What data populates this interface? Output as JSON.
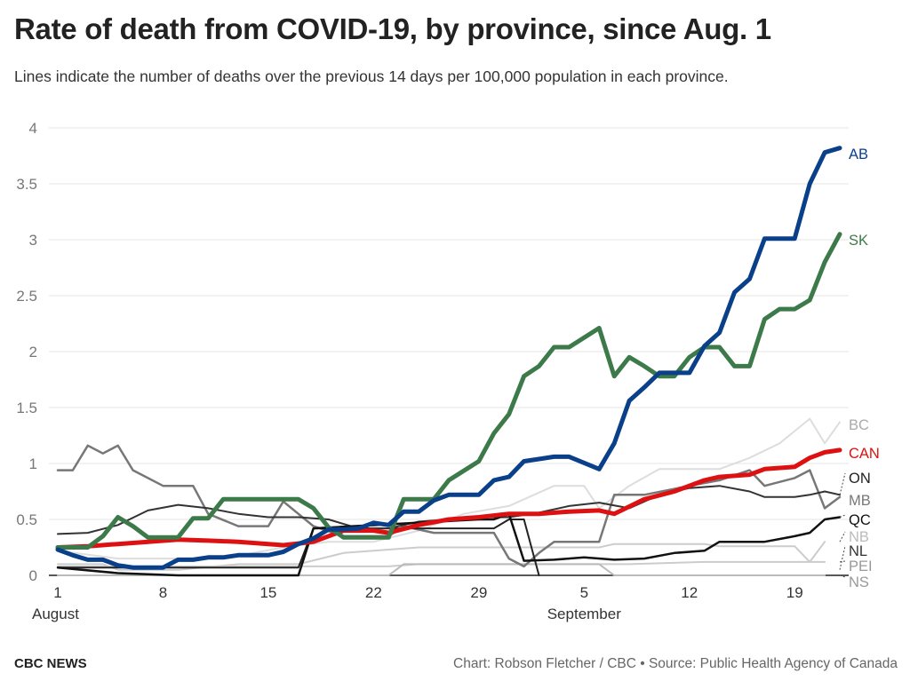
{
  "title": "Rate of death from COVID-19, by province, since Aug. 1",
  "subtitle": "Lines indicate the number of deaths over the previous 14 days per 100,000 population in each province.",
  "footer": {
    "brand": "CBC NEWS",
    "credit": "Chart: Robson Fletcher / CBC • Source: Public Health Agency of Canada"
  },
  "chart_data": {
    "type": "line",
    "x_start": "Aug 1",
    "x_tick_labels": [
      {
        "day": 1,
        "label": "1",
        "month": "August"
      },
      {
        "day": 8,
        "label": "8"
      },
      {
        "day": 15,
        "label": "15"
      },
      {
        "day": 22,
        "label": "22"
      },
      {
        "day": 29,
        "label": "29"
      },
      {
        "day": 36,
        "label": "5",
        "month": "September"
      },
      {
        "day": 43,
        "label": "12"
      },
      {
        "day": 50,
        "label": "19"
      }
    ],
    "ylim": [
      0,
      4
    ],
    "y_ticks": [
      0,
      0.5,
      1,
      1.5,
      2,
      2.5,
      3,
      3.5,
      4
    ],
    "y_tick_labels": [
      "0",
      "0.5",
      "1",
      "1.5",
      "2",
      "2.5",
      "3",
      "3.5",
      "4"
    ],
    "grid": true,
    "series": [
      {
        "name": "PEI",
        "color": "#cccccc",
        "width": 2,
        "points": [
          [
            1,
            0.08
          ],
          [
            23,
            0.08
          ],
          [
            25,
            0.1
          ],
          [
            28,
            0.1
          ],
          [
            30,
            0.1
          ],
          [
            34,
            0.1
          ],
          [
            37,
            0.1
          ],
          [
            39,
            0.1
          ],
          [
            44,
            0.12
          ],
          [
            50,
            0.12
          ],
          [
            52,
            0.12
          ]
        ]
      },
      {
        "name": "NS",
        "color": "#bbbbbb",
        "width": 2,
        "points": [
          [
            1,
            0
          ],
          [
            23,
            0
          ],
          [
            24,
            0.1
          ],
          [
            31,
            0.1
          ],
          [
            34,
            0.1
          ],
          [
            37,
            0.1
          ],
          [
            38,
            0
          ],
          [
            52,
            0
          ]
        ]
      },
      {
        "name": "NB",
        "color": "#cccccc",
        "width": 2,
        "points": [
          [
            1,
            0.1
          ],
          [
            4,
            0.1
          ],
          [
            5,
            0.05
          ],
          [
            9,
            0.05
          ],
          [
            13,
            0.1
          ],
          [
            16,
            0.1
          ],
          [
            17,
            0.1
          ],
          [
            20,
            0.2
          ],
          [
            25,
            0.25
          ],
          [
            30,
            0.25
          ],
          [
            32,
            0.25
          ],
          [
            37,
            0.25
          ],
          [
            38,
            0.28
          ],
          [
            44,
            0.28
          ],
          [
            45,
            0.26
          ],
          [
            50,
            0.26
          ],
          [
            51,
            0.12
          ],
          [
            52,
            0.3
          ]
        ]
      },
      {
        "name": "BC",
        "color": "#dddddd",
        "width": 2,
        "points": [
          [
            1,
            0.22
          ],
          [
            5,
            0.15
          ],
          [
            8,
            0.15
          ],
          [
            12,
            0.15
          ],
          [
            16,
            0.25
          ],
          [
            19,
            0.3
          ],
          [
            22,
            0.3
          ],
          [
            25,
            0.4
          ],
          [
            28,
            0.55
          ],
          [
            31,
            0.62
          ],
          [
            34,
            0.8
          ],
          [
            36,
            0.8
          ],
          [
            37,
            0.6
          ],
          [
            39,
            0.8
          ],
          [
            41,
            0.95
          ],
          [
            43,
            0.95
          ],
          [
            45,
            0.95
          ],
          [
            47,
            1.05
          ],
          [
            49,
            1.18
          ],
          [
            51,
            1.4
          ],
          [
            52,
            1.18
          ],
          [
            53,
            1.37
          ]
        ]
      },
      {
        "name": "MB",
        "color": "#777777",
        "width": 2.5,
        "points": [
          [
            1,
            0.94
          ],
          [
            2,
            0.94
          ],
          [
            3,
            1.16
          ],
          [
            4,
            1.09
          ],
          [
            5,
            1.16
          ],
          [
            6,
            0.94
          ],
          [
            8,
            0.8
          ],
          [
            10,
            0.8
          ],
          [
            11,
            0.55
          ],
          [
            13,
            0.44
          ],
          [
            15,
            0.44
          ],
          [
            16,
            0.66
          ],
          [
            18,
            0.44
          ],
          [
            20,
            0.35
          ],
          [
            22,
            0.35
          ],
          [
            23,
            0.35
          ],
          [
            24,
            0.44
          ],
          [
            26,
            0.38
          ],
          [
            28,
            0.38
          ],
          [
            30,
            0.38
          ],
          [
            31,
            0.15
          ],
          [
            32,
            0.08
          ],
          [
            33,
            0.2
          ],
          [
            34,
            0.3
          ],
          [
            37,
            0.3
          ],
          [
            38,
            0.72
          ],
          [
            40,
            0.72
          ],
          [
            43,
            0.8
          ],
          [
            45,
            0.85
          ],
          [
            47,
            0.94
          ],
          [
            48,
            0.8
          ],
          [
            50,
            0.87
          ],
          [
            51,
            0.94
          ],
          [
            52,
            0.6
          ],
          [
            53,
            0.7
          ]
        ]
      },
      {
        "name": "NL",
        "color": "#222222",
        "width": 2,
        "points": [
          [
            1,
            0.07
          ],
          [
            17,
            0.07
          ],
          [
            18,
            0.42
          ],
          [
            30,
            0.42
          ],
          [
            31,
            0.5
          ],
          [
            32,
            0.5
          ],
          [
            33,
            0
          ]
        ]
      },
      {
        "name": "ON",
        "color": "#333333",
        "width": 2,
        "points": [
          [
            1,
            0.37
          ],
          [
            3,
            0.38
          ],
          [
            5,
            0.45
          ],
          [
            7,
            0.58
          ],
          [
            9,
            0.63
          ],
          [
            11,
            0.6
          ],
          [
            13,
            0.55
          ],
          [
            15,
            0.52
          ],
          [
            17,
            0.52
          ],
          [
            19,
            0.5
          ],
          [
            21,
            0.42
          ],
          [
            23,
            0.42
          ],
          [
            25,
            0.48
          ],
          [
            27,
            0.5
          ],
          [
            29,
            0.52
          ],
          [
            31,
            0.52
          ],
          [
            33,
            0.56
          ],
          [
            35,
            0.62
          ],
          [
            37,
            0.65
          ],
          [
            39,
            0.6
          ],
          [
            41,
            0.72
          ],
          [
            43,
            0.78
          ],
          [
            45,
            0.8
          ],
          [
            47,
            0.75
          ],
          [
            48,
            0.7
          ],
          [
            50,
            0.7
          ],
          [
            51,
            0.72
          ],
          [
            52,
            0.75
          ],
          [
            53,
            0.72
          ]
        ]
      },
      {
        "name": "QC",
        "color": "#111111",
        "width": 2.5,
        "points": [
          [
            1,
            0.07
          ],
          [
            5,
            0.02
          ],
          [
            9,
            0
          ],
          [
            17,
            0
          ],
          [
            18,
            0.42
          ],
          [
            29,
            0.5
          ],
          [
            30,
            0.5
          ],
          [
            31,
            0.55
          ],
          [
            32,
            0.13
          ],
          [
            34,
            0.14
          ],
          [
            36,
            0.16
          ],
          [
            38,
            0.14
          ],
          [
            40,
            0.15
          ],
          [
            42,
            0.2
          ],
          [
            44,
            0.22
          ],
          [
            45,
            0.3
          ],
          [
            48,
            0.3
          ],
          [
            50,
            0.35
          ],
          [
            51,
            0.38
          ],
          [
            52,
            0.5
          ],
          [
            53,
            0.52
          ]
        ]
      },
      {
        "name": "CAN",
        "color": "#dd1111",
        "width": 5,
        "points": [
          [
            1,
            0.25
          ],
          [
            3,
            0.26
          ],
          [
            5,
            0.28
          ],
          [
            7,
            0.3
          ],
          [
            9,
            0.32
          ],
          [
            11,
            0.31
          ],
          [
            13,
            0.3
          ],
          [
            15,
            0.28
          ],
          [
            16,
            0.27
          ],
          [
            18,
            0.3
          ],
          [
            20,
            0.4
          ],
          [
            22,
            0.4
          ],
          [
            23,
            0.38
          ],
          [
            25,
            0.45
          ],
          [
            27,
            0.5
          ],
          [
            29,
            0.52
          ],
          [
            31,
            0.55
          ],
          [
            33,
            0.55
          ],
          [
            35,
            0.57
          ],
          [
            37,
            0.58
          ],
          [
            38,
            0.55
          ],
          [
            40,
            0.68
          ],
          [
            42,
            0.75
          ],
          [
            44,
            0.85
          ],
          [
            45,
            0.88
          ],
          [
            47,
            0.9
          ],
          [
            48,
            0.95
          ],
          [
            50,
            0.97
          ],
          [
            51,
            1.05
          ],
          [
            52,
            1.1
          ],
          [
            53,
            1.12
          ]
        ]
      },
      {
        "name": "SK",
        "color": "#3d7a4a",
        "width": 5,
        "points": [
          [
            1,
            0.25
          ],
          [
            3,
            0.25
          ],
          [
            4,
            0.35
          ],
          [
            5,
            0.52
          ],
          [
            6,
            0.44
          ],
          [
            7,
            0.34
          ],
          [
            9,
            0.34
          ],
          [
            10,
            0.51
          ],
          [
            11,
            0.51
          ],
          [
            12,
            0.68
          ],
          [
            13,
            0.68
          ],
          [
            17,
            0.68
          ],
          [
            18,
            0.6
          ],
          [
            19,
            0.43
          ],
          [
            20,
            0.34
          ],
          [
            21,
            0.34
          ],
          [
            22,
            0.34
          ],
          [
            23,
            0.34
          ],
          [
            24,
            0.68
          ],
          [
            26,
            0.68
          ],
          [
            27,
            0.85
          ],
          [
            29,
            1.02
          ],
          [
            30,
            1.27
          ],
          [
            31,
            1.44
          ],
          [
            32,
            1.78
          ],
          [
            33,
            1.87
          ],
          [
            34,
            2.04
          ],
          [
            35,
            2.04
          ],
          [
            37,
            2.21
          ],
          [
            38,
            1.78
          ],
          [
            39,
            1.95
          ],
          [
            40,
            1.87
          ],
          [
            41,
            1.78
          ],
          [
            42,
            1.78
          ],
          [
            43,
            1.95
          ],
          [
            44,
            2.04
          ],
          [
            45,
            2.04
          ],
          [
            46,
            1.87
          ],
          [
            47,
            1.87
          ],
          [
            48,
            2.29
          ],
          [
            49,
            2.38
          ],
          [
            50,
            2.38
          ],
          [
            51,
            2.46
          ],
          [
            52,
            2.8
          ],
          [
            53,
            3.05
          ]
        ]
      },
      {
        "name": "AB",
        "color": "#0a3f8a",
        "width": 5,
        "points": [
          [
            1,
            0.23
          ],
          [
            2,
            0.18
          ],
          [
            3,
            0.14
          ],
          [
            4,
            0.14
          ],
          [
            5,
            0.09
          ],
          [
            6,
            0.07
          ],
          [
            7,
            0.07
          ],
          [
            8,
            0.07
          ],
          [
            9,
            0.14
          ],
          [
            10,
            0.14
          ],
          [
            11,
            0.16
          ],
          [
            12,
            0.16
          ],
          [
            13,
            0.18
          ],
          [
            14,
            0.18
          ],
          [
            15,
            0.18
          ],
          [
            16,
            0.21
          ],
          [
            17,
            0.28
          ],
          [
            18,
            0.33
          ],
          [
            19,
            0.41
          ],
          [
            20,
            0.41
          ],
          [
            21,
            0.42
          ],
          [
            22,
            0.47
          ],
          [
            23,
            0.45
          ],
          [
            24,
            0.57
          ],
          [
            25,
            0.57
          ],
          [
            26,
            0.67
          ],
          [
            27,
            0.72
          ],
          [
            28,
            0.72
          ],
          [
            29,
            0.72
          ],
          [
            30,
            0.85
          ],
          [
            31,
            0.88
          ],
          [
            32,
            1.02
          ],
          [
            33,
            1.04
          ],
          [
            34,
            1.06
          ],
          [
            35,
            1.06
          ],
          [
            37,
            0.95
          ],
          [
            38,
            1.18
          ],
          [
            39,
            1.56
          ],
          [
            40,
            1.68
          ],
          [
            41,
            1.81
          ],
          [
            42,
            1.81
          ],
          [
            43,
            1.81
          ],
          [
            44,
            2.05
          ],
          [
            45,
            2.17
          ],
          [
            46,
            2.53
          ],
          [
            47,
            2.65
          ],
          [
            48,
            3.01
          ],
          [
            49,
            3.01
          ],
          [
            50,
            3.01
          ],
          [
            51,
            3.5
          ],
          [
            52,
            3.78
          ],
          [
            53,
            3.82
          ]
        ]
      }
    ],
    "end_labels": [
      {
        "name": "AB",
        "text": "AB",
        "color": "#0a3f8a",
        "value": 3.82
      },
      {
        "name": "SK",
        "text": "SK",
        "color": "#3d7a4a",
        "value": 3.05
      },
      {
        "name": "BC",
        "text": "BC",
        "color": "#aaaaaa",
        "value": 1.37
      },
      {
        "name": "CAN",
        "text": "CAN",
        "color": "#dd1111",
        "value": 1.12
      },
      {
        "name": "ON",
        "text": "ON",
        "color": "#222222",
        "value": 0.72
      },
      {
        "name": "MB",
        "text": "MB",
        "color": "#777777",
        "value": 0.7
      },
      {
        "name": "QC",
        "text": "QC",
        "color": "#111111",
        "value": 0.52
      },
      {
        "name": "NB",
        "text": "NB",
        "color": "#bbbbbb",
        "value": 0.3
      },
      {
        "name": "NL",
        "text": "NL",
        "color": "#333333",
        "value": 0.05
      },
      {
        "name": "PEI",
        "text": "PEI",
        "color": "#999999",
        "value": 0.12
      },
      {
        "name": "NS",
        "text": "NS",
        "color": "#999999",
        "value": 0.0
      }
    ]
  }
}
